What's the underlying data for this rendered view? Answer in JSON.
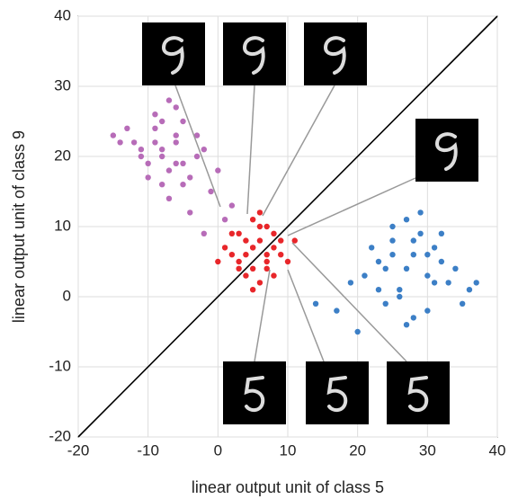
{
  "chart_data": {
    "type": "scatter",
    "x_label": "linear output unit of class 5",
    "y_label": "linear output unit of class 9",
    "xlim": [
      -20,
      40
    ],
    "ylim": [
      -20,
      40
    ],
    "xticks": [
      -20,
      -10,
      0,
      10,
      20,
      30,
      40
    ],
    "yticks": [
      -20,
      -10,
      0,
      10,
      20,
      30,
      40
    ],
    "grid": true,
    "identity_line": true,
    "series": [
      {
        "color": "#b76cb8",
        "x": [
          -8,
          -6,
          -10,
          -5,
          -12,
          -7,
          -9,
          -4,
          -3,
          -11,
          -6,
          -8,
          -2,
          -14,
          -7,
          -5,
          -9,
          -1,
          -10,
          -6,
          0,
          -13,
          -4,
          -8,
          -3,
          2,
          -7,
          -11,
          -5,
          -9,
          -15,
          1,
          -6,
          -2,
          -8
        ],
        "values": [
          21,
          23,
          19,
          25,
          22,
          18,
          24,
          17,
          20,
          20,
          27,
          16,
          21,
          22,
          14,
          19,
          26,
          15,
          17,
          22,
          18,
          24,
          12,
          20,
          23,
          13,
          28,
          21,
          16,
          22,
          23,
          11,
          19,
          9,
          25
        ]
      },
      {
        "color": "#3c7fc6",
        "x": [
          27,
          25,
          30,
          23,
          28,
          32,
          26,
          29,
          21,
          34,
          24,
          31,
          27,
          19,
          33,
          28,
          25,
          36,
          22,
          30,
          26,
          29,
          17,
          35,
          24,
          31,
          28,
          20,
          32,
          27,
          14,
          37,
          25,
          30,
          23
        ],
        "values": [
          4,
          6,
          3,
          5,
          8,
          5,
          1,
          9,
          3,
          4,
          -1,
          7,
          11,
          2,
          2,
          -3,
          10,
          1,
          7,
          6,
          0,
          12,
          -2,
          -1,
          4,
          2,
          6,
          -5,
          9,
          -4,
          -1,
          2,
          8,
          -2,
          1
        ]
      },
      {
        "color": "#e8262a",
        "x": [
          5,
          6,
          4,
          7,
          3,
          8,
          5,
          2,
          9,
          6,
          4,
          7,
          1,
          10,
          5,
          3,
          8,
          6,
          4,
          7,
          2,
          9,
          5,
          6,
          11,
          0,
          5,
          7,
          3,
          8
        ],
        "values": [
          7,
          8,
          6,
          5,
          9,
          7,
          4,
          6,
          8,
          10,
          3,
          6,
          7,
          5,
          11,
          5,
          9,
          2,
          8,
          4,
          9,
          6,
          7,
          12,
          8,
          5,
          1,
          10,
          4,
          3
        ]
      }
    ]
  }
}
